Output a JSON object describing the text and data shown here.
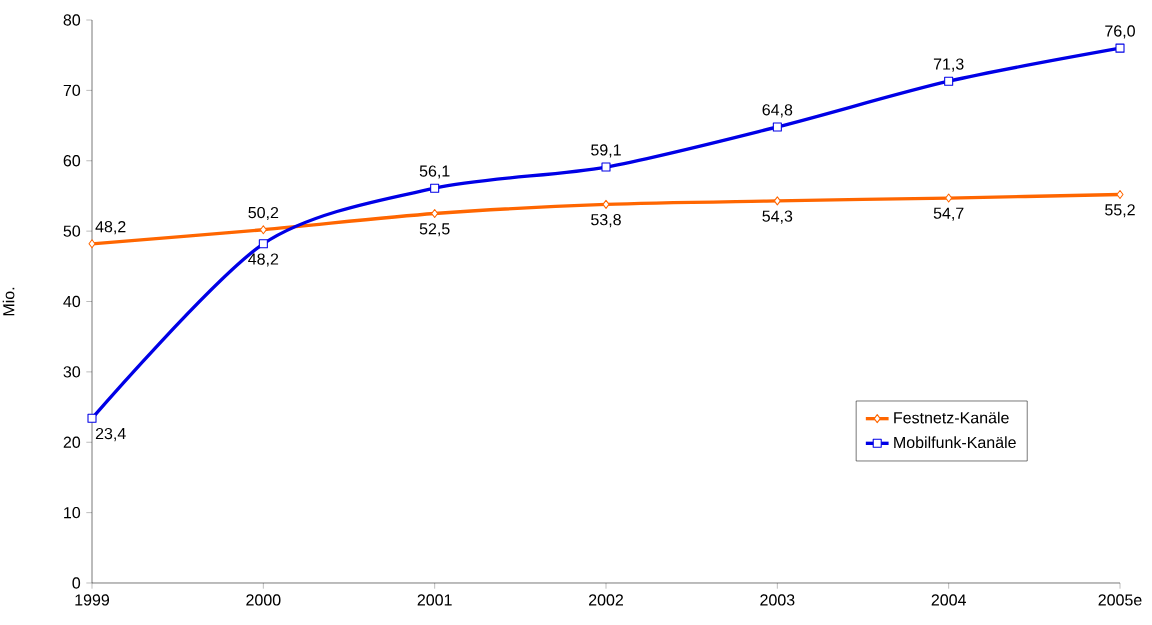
{
  "chart_data": {
    "type": "line",
    "ylabel": "Mio.",
    "categories": [
      "1999",
      "2000",
      "2001",
      "2002",
      "2003",
      "2004",
      "2005e"
    ],
    "series": [
      {
        "name": "Festnetz-Kanäle",
        "color": "#ff6600",
        "marker": "diamond",
        "values": [
          48.2,
          50.2,
          52.5,
          53.8,
          54.3,
          54.7,
          55.2
        ],
        "value_labels": [
          "48,2",
          "50,2",
          "52,5",
          "53,8",
          "54,3",
          "54,7",
          "55,2"
        ]
      },
      {
        "name": "Mobilfunk-Kanäle",
        "color": "#0000e6",
        "marker": "square",
        "values": [
          23.4,
          48.2,
          56.1,
          59.1,
          64.8,
          71.3,
          76.0
        ],
        "value_labels": [
          "23,4",
          "48,2",
          "56,1",
          "59,1",
          "64,8",
          "71,3",
          "76,0"
        ]
      }
    ],
    "ylim": [
      0,
      80
    ],
    "yticks": [
      0,
      10,
      20,
      30,
      40,
      50,
      60,
      70,
      80
    ],
    "grid": false,
    "legend": "right",
    "line_style": "solid"
  }
}
